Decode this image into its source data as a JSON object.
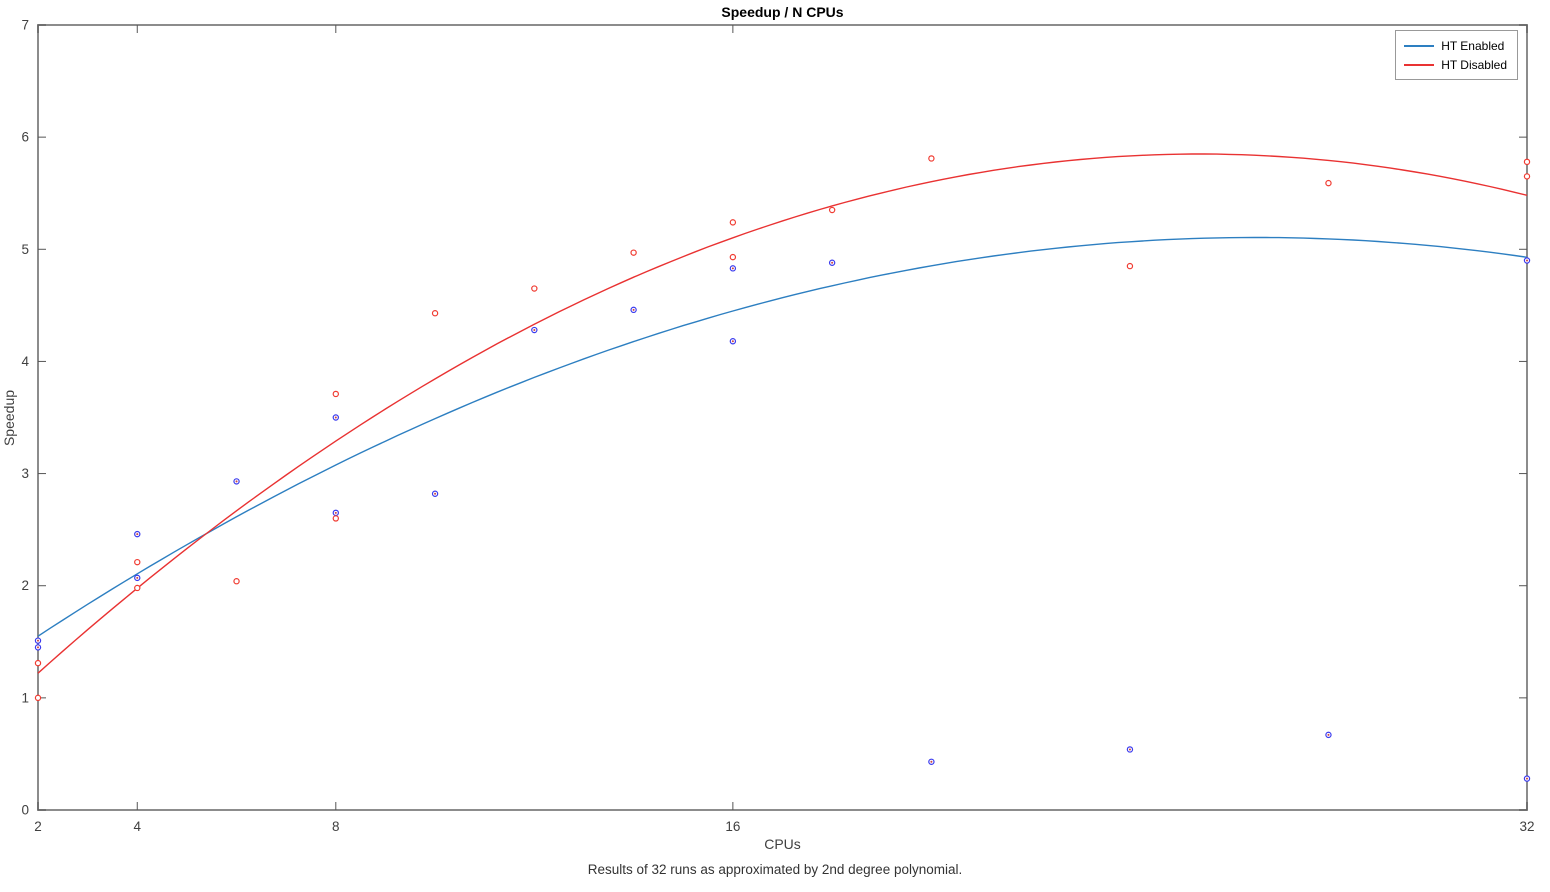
{
  "figure": {
    "caption": "Results of 32 runs as approximated by 2nd degree polynomial."
  },
  "chart_data": {
    "type": "scatter",
    "title": "Speedup / N CPUs",
    "xlabel": "CPUs",
    "ylabel": "Speedup",
    "xlim": [
      2,
      32
    ],
    "ylim": [
      0,
      7
    ],
    "x_scale": "linear",
    "xticks": [
      2,
      4,
      8,
      16,
      32
    ],
    "yticks": [
      0,
      1,
      2,
      3,
      4,
      5,
      6,
      7
    ],
    "grid": false,
    "legend_position": "top-right-inside",
    "axis_color": "#8c8c8c",
    "tick_color": "#555555",
    "label_color": "#404040",
    "series": [
      {
        "name": "HT Enabled",
        "color": "#2d7fc1",
        "marker": "o",
        "marker_edge": "#3a3aee",
        "marker_center": "#cc4444",
        "points": [
          [
            2,
            1.51
          ],
          [
            2,
            1.45
          ],
          [
            4,
            2.46
          ],
          [
            4,
            2.07
          ],
          [
            6,
            2.93
          ],
          [
            8,
            3.5
          ],
          [
            8,
            2.65
          ],
          [
            10,
            2.82
          ],
          [
            12,
            4.28
          ],
          [
            14,
            4.46
          ],
          [
            16,
            4.83
          ],
          [
            16,
            4.18
          ],
          [
            18,
            4.88
          ],
          [
            20,
            0.43
          ],
          [
            24,
            0.54
          ],
          [
            28,
            0.67
          ],
          [
            32,
            4.9
          ],
          [
            32,
            0.28
          ]
        ],
        "fit": {
          "type": "poly2",
          "a": -0.005905,
          "b": 0.3134,
          "c": 0.9468
        }
      },
      {
        "name": "HT Disabled",
        "color": "#e93232",
        "marker": "o",
        "marker_edge": "#f03c32",
        "marker_center": "#ffffff",
        "points": [
          [
            2,
            1.31
          ],
          [
            2,
            1.0
          ],
          [
            4,
            2.21
          ],
          [
            4,
            1.98
          ],
          [
            6,
            2.04
          ],
          [
            8,
            3.71
          ],
          [
            8,
            2.6
          ],
          [
            10,
            4.43
          ],
          [
            12,
            4.65
          ],
          [
            14,
            4.97
          ],
          [
            16,
            5.24
          ],
          [
            16,
            4.93
          ],
          [
            18,
            5.35
          ],
          [
            20,
            5.81
          ],
          [
            24,
            4.85
          ],
          [
            28,
            5.59
          ],
          [
            32,
            5.78
          ],
          [
            32,
            5.65
          ]
        ],
        "fit": {
          "type": "poly2",
          "a": -0.008455,
          "b": 0.4295,
          "c": 0.395
        }
      }
    ]
  }
}
